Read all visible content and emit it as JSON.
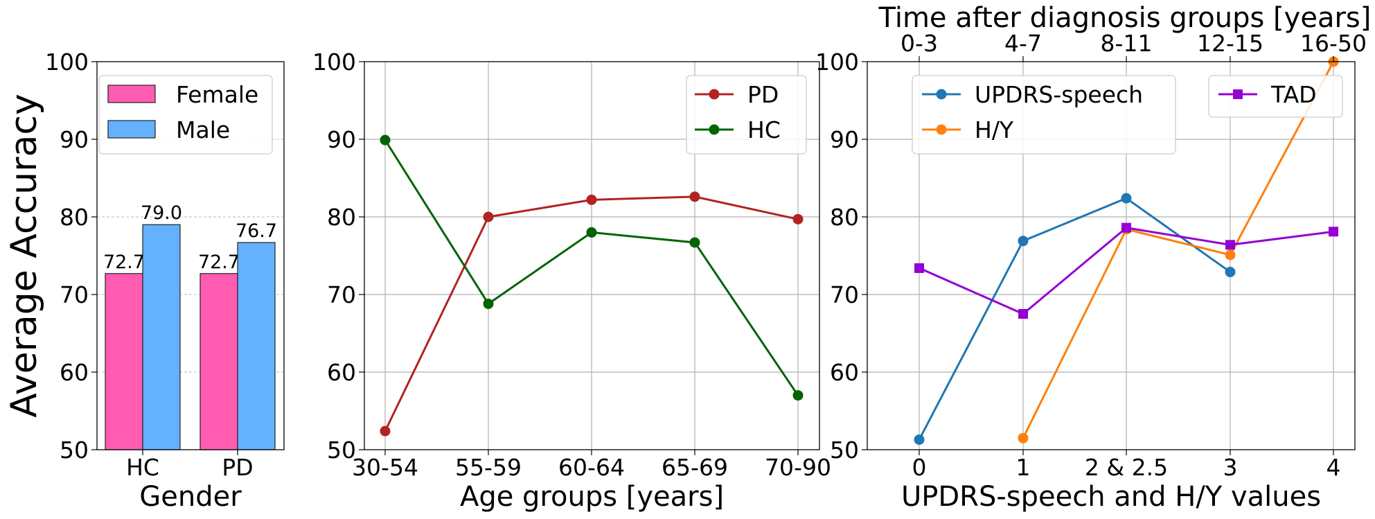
{
  "chart_data": [
    {
      "type": "bar",
      "categories": [
        "HC",
        "PD"
      ],
      "series": [
        {
          "name": "Female",
          "values": [
            72.7,
            72.7
          ],
          "labels": [
            "72.7",
            "72.7"
          ],
          "color": "#ff5cb2"
        },
        {
          "name": "Male",
          "values": [
            79.0,
            76.7
          ],
          "labels": [
            "79.0",
            "76.7"
          ],
          "color": "#63b1ff"
        }
      ],
      "xlabel": "Gender",
      "ylabel": "Average Accuracy",
      "ylim": [
        50,
        100
      ],
      "yticks": [
        "50",
        "60",
        "70",
        "80",
        "90",
        "100"
      ],
      "grid": "y-dashed",
      "legend": "upper-left"
    },
    {
      "type": "line",
      "categories": [
        "30-54",
        "55-59",
        "60-64",
        "65-69",
        "70-90"
      ],
      "series": [
        {
          "name": "PD",
          "values": [
            52.4,
            80.0,
            82.2,
            82.6,
            79.7
          ],
          "color": "#b22222"
        },
        {
          "name": "HC",
          "values": [
            89.9,
            68.8,
            78.0,
            76.7,
            57.0
          ],
          "color": "#006400"
        }
      ],
      "xlabel": "Age groups [years]",
      "ylim": [
        50,
        100
      ],
      "yticks": [
        "50",
        "60",
        "70",
        "80",
        "90",
        "100"
      ],
      "grid": "both",
      "legend": "upper-right"
    },
    {
      "type": "line",
      "categories": [
        "0",
        "1",
        "2 & 2.5",
        "3",
        "4"
      ],
      "top_categories": [
        "0-3",
        "4-7",
        "8-11",
        "12-15",
        "16-50"
      ],
      "series": [
        {
          "name": "UPDRS-speech",
          "values": [
            51.3,
            76.9,
            82.4,
            72.9,
            null
          ],
          "color": "#1f77b4",
          "marker": "circle"
        },
        {
          "name": "H/Y",
          "values": [
            null,
            51.5,
            78.4,
            75.1,
            100.0
          ],
          "color": "#ff7f0e",
          "marker": "circle"
        },
        {
          "name": "TAD",
          "values": [
            73.4,
            67.5,
            78.6,
            76.4,
            78.1
          ],
          "color": "#9400d3",
          "marker": "square"
        }
      ],
      "xlabel": "UPDRS-speech and H/Y values",
      "top_xlabel": "Time after diagnosis groups [years]",
      "top_axis_color": "#9400d3",
      "ylim": [
        50,
        100
      ],
      "yticks": [
        "50",
        "60",
        "70",
        "80",
        "90",
        "100"
      ],
      "grid": "both",
      "legend": "upper-left and upper-right"
    }
  ]
}
